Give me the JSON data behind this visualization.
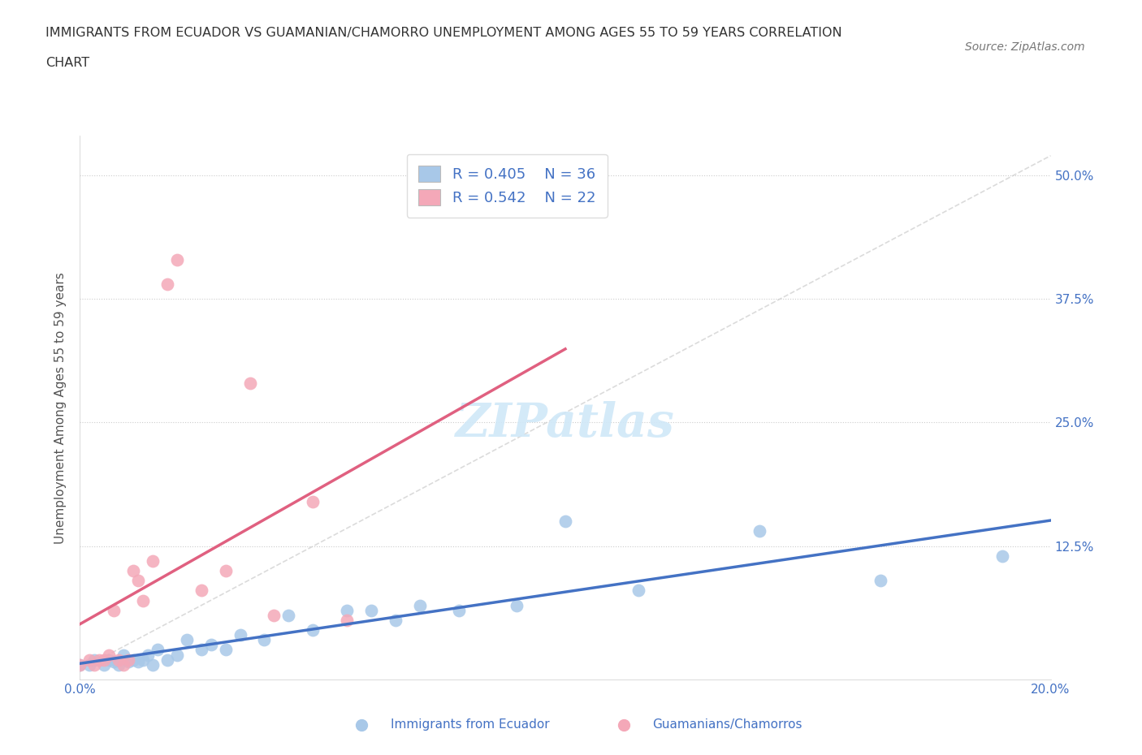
{
  "title_line1": "IMMIGRANTS FROM ECUADOR VS GUAMANIAN/CHAMORRO UNEMPLOYMENT AMONG AGES 55 TO 59 YEARS CORRELATION",
  "title_line2": "CHART",
  "source_text": "Source: ZipAtlas.com",
  "ylabel": "Unemployment Among Ages 55 to 59 years",
  "xlim": [
    0.0,
    0.2
  ],
  "ylim": [
    -0.02,
    0.55
  ],
  "blue_color": "#a8c8e8",
  "pink_color": "#f4a8b8",
  "blue_line_color": "#4472c4",
  "pink_line_color": "#e06080",
  "text_blue": "#4472c4",
  "legend_r1": "R = 0.405",
  "legend_n1": "N = 36",
  "legend_r2": "R = 0.542",
  "legend_n2": "N = 22",
  "background_color": "#ffffff",
  "grid_color": "#cccccc",
  "blue_scatter_x": [
    0.0,
    0.002,
    0.003,
    0.005,
    0.006,
    0.007,
    0.008,
    0.009,
    0.01,
    0.011,
    0.012,
    0.013,
    0.014,
    0.015,
    0.016,
    0.018,
    0.02,
    0.022,
    0.025,
    0.027,
    0.03,
    0.033,
    0.038,
    0.043,
    0.048,
    0.055,
    0.06,
    0.065,
    0.07,
    0.078,
    0.09,
    0.1,
    0.115,
    0.14,
    0.165,
    0.19
  ],
  "blue_scatter_y": [
    0.005,
    0.005,
    0.01,
    0.005,
    0.01,
    0.008,
    0.005,
    0.015,
    0.008,
    0.01,
    0.008,
    0.01,
    0.015,
    0.005,
    0.02,
    0.01,
    0.015,
    0.03,
    0.02,
    0.025,
    0.02,
    0.035,
    0.03,
    0.055,
    0.04,
    0.06,
    0.06,
    0.05,
    0.065,
    0.06,
    0.065,
    0.15,
    0.08,
    0.14,
    0.09,
    0.115
  ],
  "pink_scatter_x": [
    0.0,
    0.002,
    0.003,
    0.004,
    0.005,
    0.006,
    0.007,
    0.008,
    0.009,
    0.01,
    0.011,
    0.012,
    0.013,
    0.015,
    0.018,
    0.02,
    0.025,
    0.03,
    0.035,
    0.04,
    0.048,
    0.055
  ],
  "pink_scatter_y": [
    0.005,
    0.01,
    0.005,
    0.01,
    0.01,
    0.015,
    0.06,
    0.01,
    0.005,
    0.01,
    0.1,
    0.09,
    0.07,
    0.11,
    0.39,
    0.415,
    0.08,
    0.1,
    0.29,
    0.055,
    0.17,
    0.05
  ],
  "diag_line_color": "#cccccc",
  "watermark_color": "#d0e8f8"
}
